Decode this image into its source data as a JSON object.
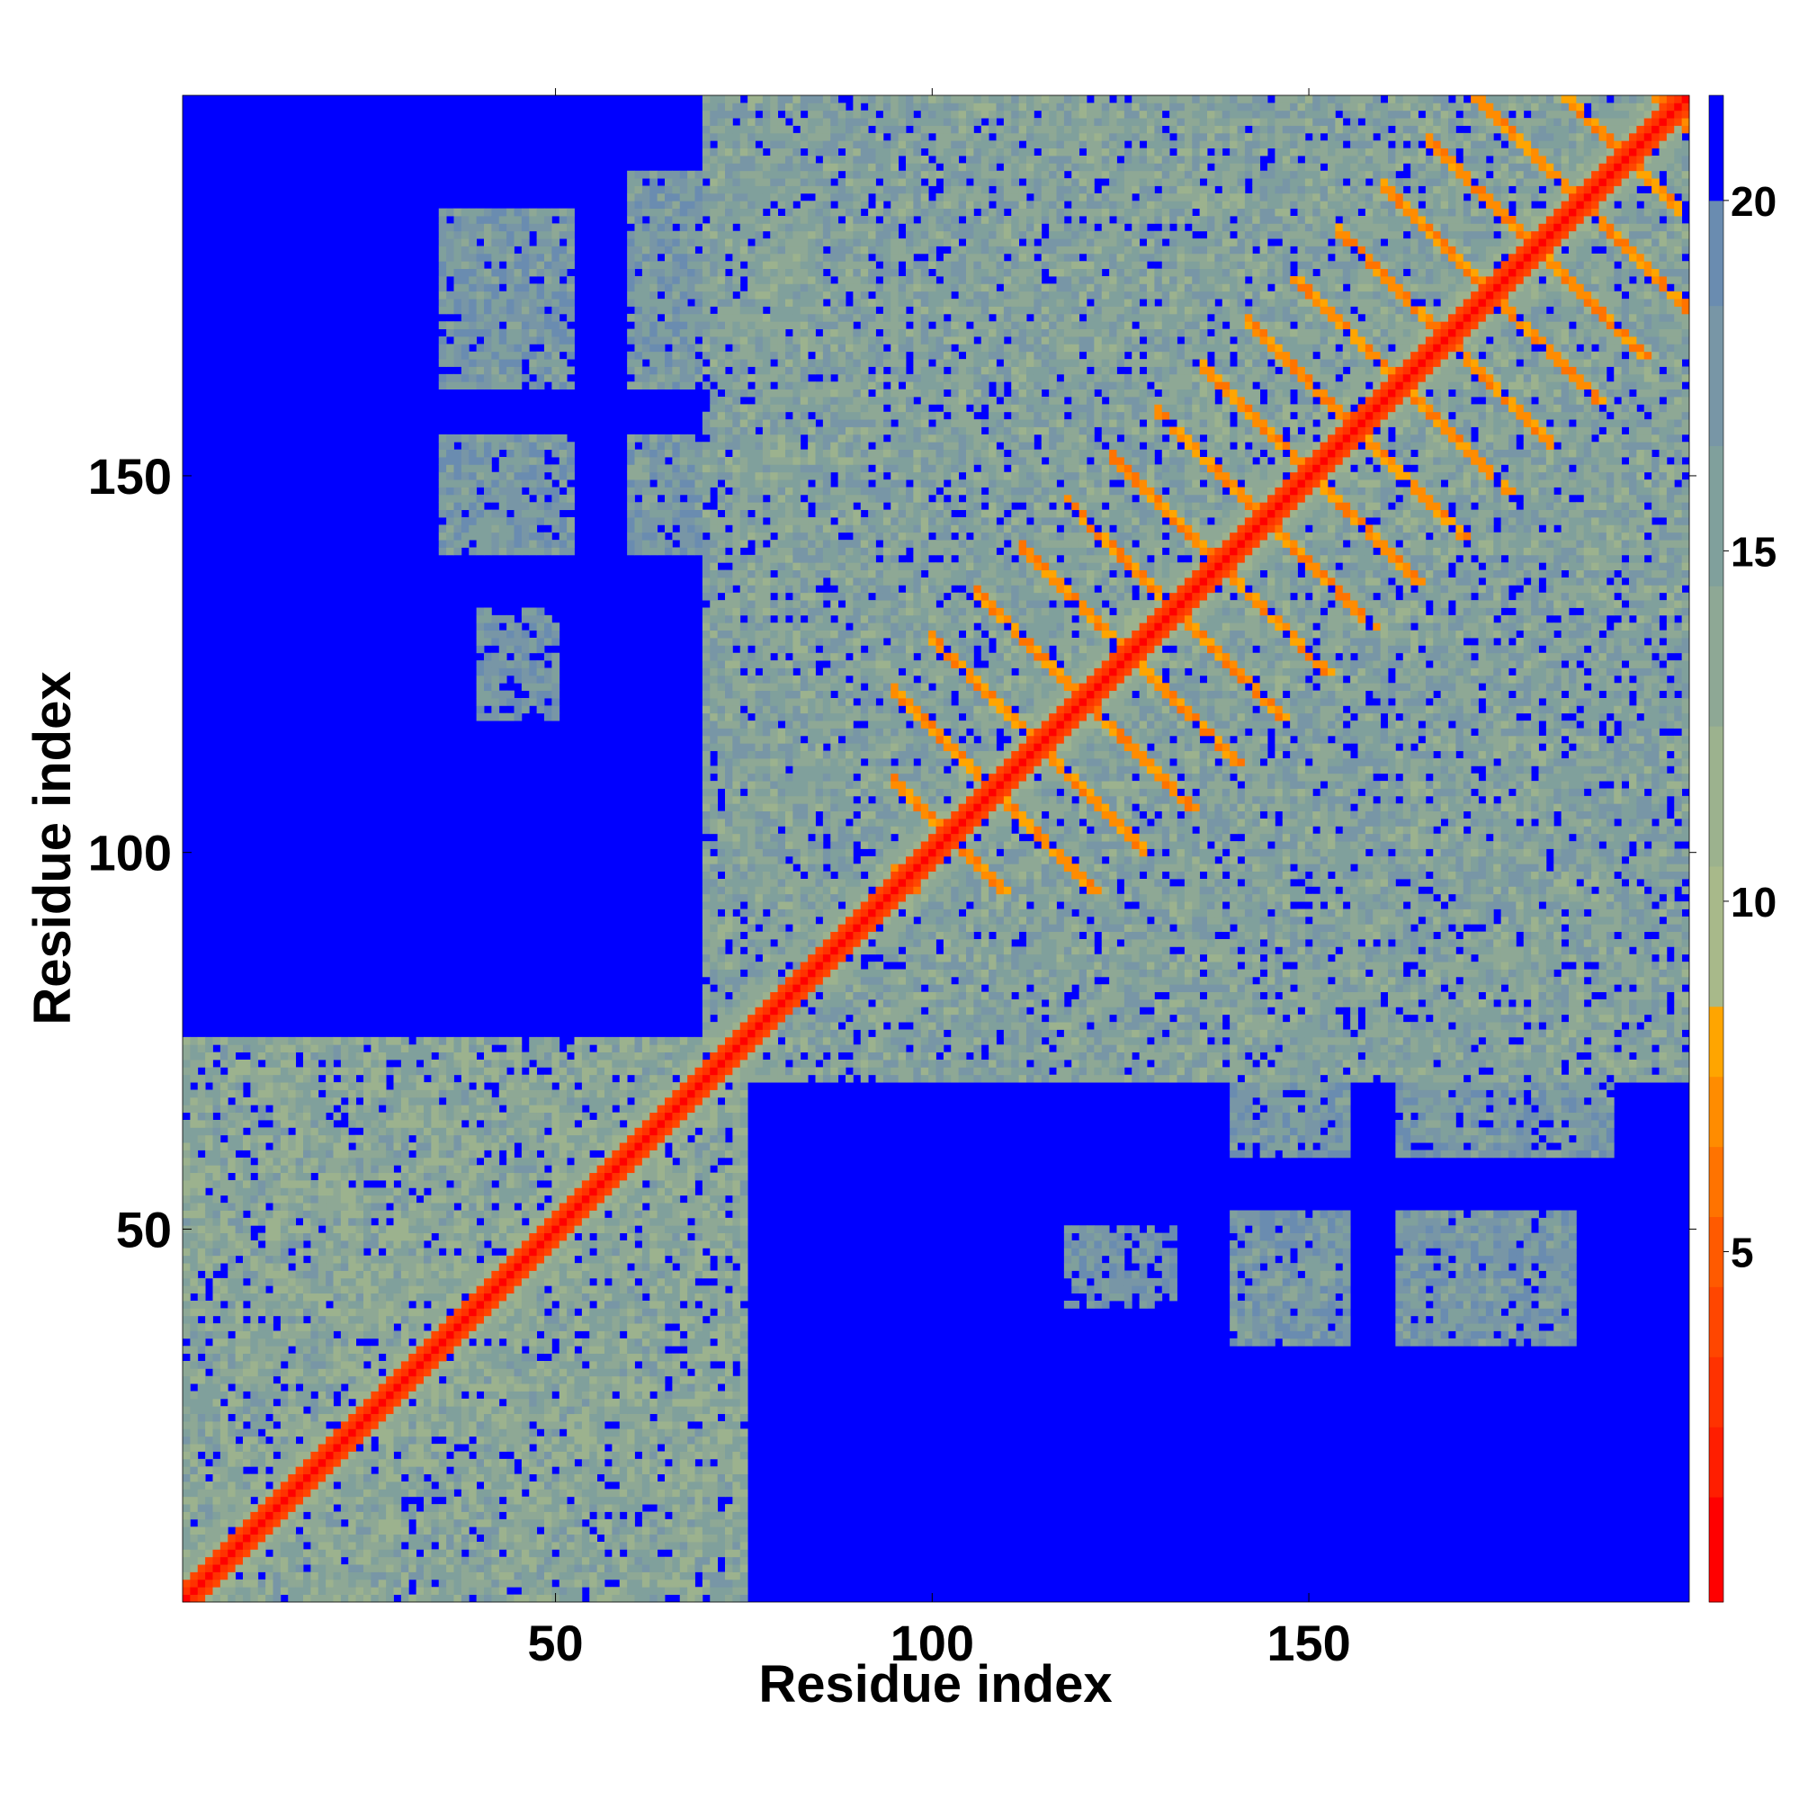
{
  "chart_data": {
    "type": "heatmap",
    "title": "",
    "xlabel": "Residue index",
    "ylabel": "Residue index",
    "xlim": [
      1,
      200
    ],
    "ylim": [
      1,
      200
    ],
    "x_ticks": [
      50,
      100,
      150
    ],
    "y_ticks": [
      50,
      100,
      150
    ],
    "colorbar": {
      "range": [
        0,
        21.5
      ],
      "ticks": [
        5,
        10,
        15,
        20
      ],
      "levels": [
        {
          "min": 0.0,
          "max": 1.5,
          "color": "#ff0000"
        },
        {
          "min": 1.5,
          "max": 2.5,
          "color": "#ff1e00"
        },
        {
          "min": 2.5,
          "max": 3.5,
          "color": "#ff3200"
        },
        {
          "min": 3.5,
          "max": 4.5,
          "color": "#ff4600"
        },
        {
          "min": 4.5,
          "max": 5.5,
          "color": "#ff5a00"
        },
        {
          "min": 5.5,
          "max": 6.5,
          "color": "#ff7300"
        },
        {
          "min": 6.5,
          "max": 7.5,
          "color": "#ff8c00"
        },
        {
          "min": 7.5,
          "max": 8.5,
          "color": "#ffa500"
        },
        {
          "min": 8.5,
          "max": 10.5,
          "color": "#a8b98a"
        },
        {
          "min": 10.5,
          "max": 12.5,
          "color": "#9cb28e"
        },
        {
          "min": 12.5,
          "max": 14.5,
          "color": "#8ea895"
        },
        {
          "min": 14.5,
          "max": 16.5,
          "color": "#80a09c"
        },
        {
          "min": 16.5,
          "max": 18.5,
          "color": "#7896a6"
        },
        {
          "min": 18.5,
          "max": 20.0,
          "color": "#6a8cb0"
        },
        {
          "min": 20.0,
          "max": 21.5,
          "color": "#0000ff"
        }
      ]
    },
    "description_values": {
      "diagonal_value": 0,
      "background_value": 21,
      "blocks": [
        {
          "x": [
            1,
            75
          ],
          "y": [
            1,
            75
          ],
          "value": 13
        },
        {
          "x": [
            70,
            200
          ],
          "y": [
            70,
            200
          ],
          "value": 14
        },
        {
          "x": [
            35,
            52
          ],
          "y": [
            140,
            155
          ],
          "value": 16
        },
        {
          "x": [
            35,
            52
          ],
          "y": [
            162,
            185
          ],
          "value": 16
        },
        {
          "x": [
            60,
            85
          ],
          "y": [
            140,
            155
          ],
          "value": 16
        },
        {
          "x": [
            60,
            85
          ],
          "y": [
            162,
            190
          ],
          "value": 16
        },
        {
          "x": [
            40,
            50
          ],
          "y": [
            118,
            132
          ],
          "value": 17
        },
        {
          "x": [
            118,
            132
          ],
          "y": [
            40,
            50
          ],
          "value": 17
        },
        {
          "x": [
            140,
            155
          ],
          "y": [
            35,
            52
          ],
          "value": 16
        },
        {
          "x": [
            162,
            185
          ],
          "y": [
            35,
            52
          ],
          "value": 16
        },
        {
          "x": [
            140,
            155
          ],
          "y": [
            60,
            85
          ],
          "value": 16
        },
        {
          "x": [
            162,
            190
          ],
          "y": [
            60,
            85
          ],
          "value": 16
        }
      ],
      "offdiagonal_bands": [
        {
          "from": 95,
          "to": 200,
          "spacing": 12,
          "value": 6
        }
      ]
    }
  }
}
